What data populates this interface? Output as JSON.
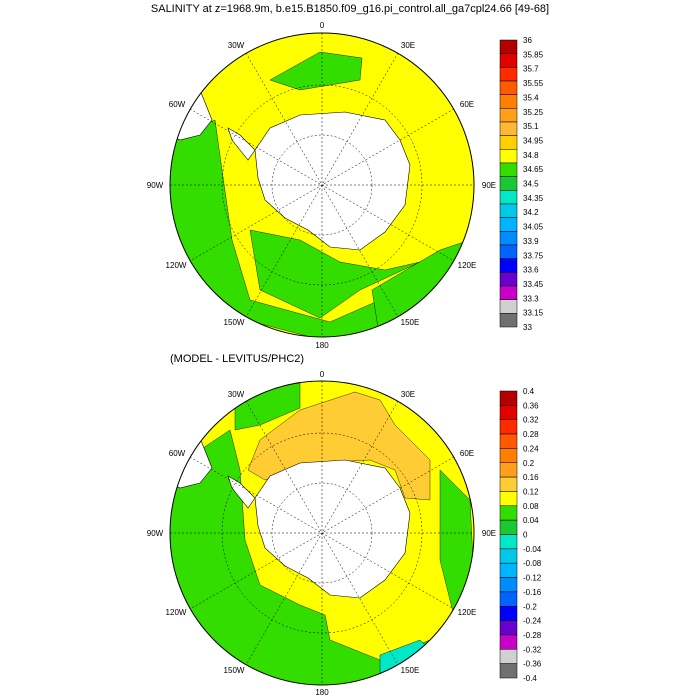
{
  "panels": [
    {
      "title": "SALINITY at z=1968.9m, b.e15.B1850.f09_g16.pi_control.all_ga7cpl24.66 [49-68]",
      "lon_labels": [
        "0",
        "30E",
        "60E",
        "90E",
        "120E",
        "150E",
        "180",
        "150W",
        "120W",
        "90W",
        "60W",
        "30W"
      ],
      "colorbar": {
        "labels": [
          "36",
          "35.85",
          "35.7",
          "35.55",
          "35.4",
          "35.25",
          "35.1",
          "34.95",
          "34.8",
          "34.65",
          "34.5",
          "34.35",
          "34.2",
          "34.05",
          "33.9",
          "33.75",
          "33.6",
          "33.45",
          "33.3",
          "33.15",
          "33"
        ],
        "colors": [
          "#b30000",
          "#e30000",
          "#ff2a00",
          "#ff5a00",
          "#ff8000",
          "#ff9f1a",
          "#ffb833",
          "#ffd000",
          "#ffff00",
          "#33dd00",
          "#19c832",
          "#00e8c8",
          "#00c8e8",
          "#00b4ff",
          "#008cff",
          "#0064ff",
          "#0000ff",
          "#6a00d0",
          "#c800c8",
          "#d0d0d0",
          "#707070"
        ]
      }
    },
    {
      "title": "(MODEL - LEVITUS/PHC2)",
      "lon_labels": [
        "0",
        "30E",
        "60E",
        "90E",
        "120E",
        "150E",
        "180",
        "150W",
        "120W",
        "90W",
        "60W",
        "30W"
      ],
      "colorbar": {
        "labels": [
          "0.4",
          "0.36",
          "0.32",
          "0.28",
          "0.24",
          "0.2",
          "0.16",
          "0.12",
          "0.08",
          "0.04",
          "0",
          "-0.04",
          "-0.08",
          "-0.12",
          "-0.16",
          "-0.2",
          "-0.24",
          "-0.28",
          "-0.32",
          "-0.36",
          "-0.4"
        ],
        "colors": [
          "#b30000",
          "#e30000",
          "#ff2a00",
          "#ff5a00",
          "#ff8000",
          "#ff9f1a",
          "#ffcc33",
          "#ffff00",
          "#33dd00",
          "#19c832",
          "#00e8c8",
          "#00c8e8",
          "#00b4ff",
          "#008cff",
          "#0064ff",
          "#0000ff",
          "#6a00d0",
          "#c800c8",
          "#d0d0d0",
          "#707070"
        ]
      }
    }
  ]
}
